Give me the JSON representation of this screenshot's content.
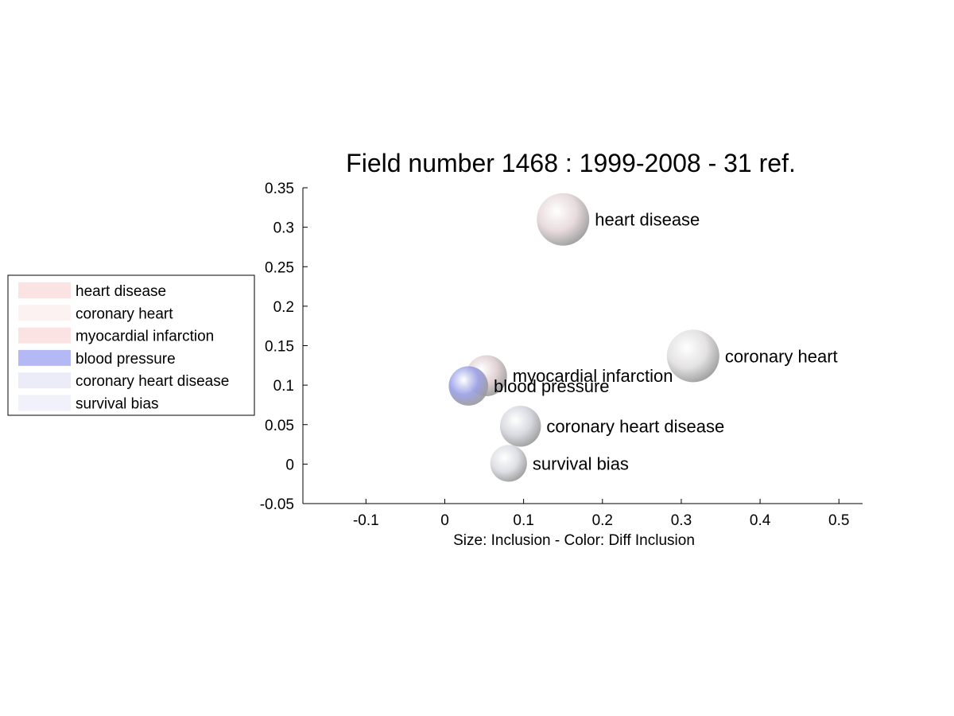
{
  "chart_data": {
    "type": "scatter",
    "title": "Field number 1468 : 1999-2008  - 31 ref.",
    "xlabel": "Size: Inclusion - Color: Diff Inclusion",
    "ylabel": "",
    "xlim": [
      -0.18,
      0.53
    ],
    "ylim": [
      -0.05,
      0.35
    ],
    "x_ticks": [
      -0.1,
      0,
      0.1,
      0.2,
      0.3,
      0.4,
      0.5
    ],
    "x_tick_labels": [
      "-0.1",
      "0",
      "0.1",
      "0.2",
      "0.3",
      "0.4",
      "0.5"
    ],
    "y_ticks": [
      -0.05,
      0,
      0.05,
      0.1,
      0.15,
      0.2,
      0.25,
      0.3,
      0.35
    ],
    "y_tick_labels": [
      "-0.05",
      "0",
      "0.05",
      "0.1",
      "0.15",
      "0.2",
      "0.25",
      "0.3",
      "0.35"
    ],
    "grid": false,
    "legend_placement": "left, outside plot",
    "points": [
      {
        "label": "heart disease",
        "x": 0.15,
        "y": 0.31,
        "size": 1.0,
        "color": "#e6d8da"
      },
      {
        "label": "coronary heart",
        "x": 0.315,
        "y": 0.137,
        "size": 1.0,
        "color": "#e2e0e0"
      },
      {
        "label": "myocardial infarction",
        "x": 0.053,
        "y": 0.112,
        "size": 0.78,
        "color": "#e0cfd1"
      },
      {
        "label": "blood pressure",
        "x": 0.03,
        "y": 0.099,
        "size": 0.75,
        "color": "#9aa0e6"
      },
      {
        "label": "coronary heart disease",
        "x": 0.096,
        "y": 0.048,
        "size": 0.78,
        "color": "#d5d7de"
      },
      {
        "label": "survival bias",
        "x": 0.081,
        "y": 0.001,
        "size": 0.7,
        "color": "#dcdde3"
      }
    ],
    "legend": [
      {
        "label": "heart disease",
        "color": "#fbe2e3"
      },
      {
        "label": "coronary heart",
        "color": "#fdf2f2"
      },
      {
        "label": "myocardial infarction",
        "color": "#fbe2e3"
      },
      {
        "label": "blood pressure",
        "color": "#b4b8f4"
      },
      {
        "label": "coronary heart disease",
        "color": "#ececf8"
      },
      {
        "label": "survival bias",
        "color": "#f1f1fb"
      }
    ]
  }
}
